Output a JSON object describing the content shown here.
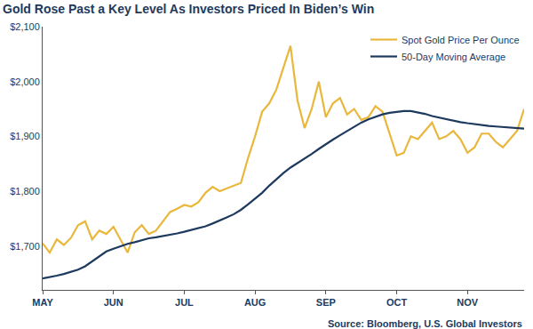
{
  "chart_data": {
    "type": "line",
    "title": "Gold Rose Past a Key Level As Investors Priced In Biden’s Win",
    "annotations": [
      "Source: Bloomberg, U.S. Global Investors"
    ],
    "categories": [
      "MAY",
      null,
      null,
      null,
      null,
      null,
      null,
      null,
      null,
      null,
      "JUN",
      null,
      null,
      null,
      null,
      null,
      null,
      null,
      null,
      null,
      "JUL",
      null,
      null,
      null,
      null,
      null,
      null,
      null,
      null,
      null,
      "AUG",
      null,
      null,
      null,
      null,
      null,
      null,
      null,
      null,
      null,
      "SEP",
      null,
      null,
      null,
      null,
      null,
      null,
      null,
      null,
      null,
      "OCT",
      null,
      null,
      null,
      null,
      null,
      null,
      null,
      null,
      null,
      "NOV",
      null,
      null,
      null,
      null,
      null,
      null,
      null,
      null
    ],
    "series": [
      {
        "name": "Spot Gold Price Per Ounce",
        "color": "#e9b73b",
        "line_style": "solid",
        "values": [
          1705,
          1688,
          1712,
          1702,
          1715,
          1738,
          1745,
          1712,
          1728,
          1722,
          1735,
          1712,
          1688,
          1725,
          1738,
          1722,
          1728,
          1745,
          1762,
          1768,
          1775,
          1772,
          1780,
          1797,
          1808,
          1800,
          1805,
          1810,
          1815,
          1860,
          1900,
          1945,
          1960,
          1985,
          2025,
          2065,
          1965,
          1915,
          1950,
          2000,
          1935,
          1960,
          1970,
          1940,
          1950,
          1930,
          1935,
          1955,
          1945,
          1905,
          1865,
          1870,
          1900,
          1895,
          1910,
          1925,
          1895,
          1900,
          1910,
          1895,
          1870,
          1880,
          1905,
          1905,
          1890,
          1880,
          1895,
          1910,
          1950
        ]
      },
      {
        "name": "50-Day Moving Average",
        "color": "#1d3a5e",
        "line_style": "solid",
        "values": [
          1641,
          1643,
          1646,
          1649,
          1653,
          1657,
          1663,
          1672,
          1681,
          1690,
          1695,
          1700,
          1704,
          1707,
          1711,
          1714,
          1716,
          1718,
          1720,
          1723,
          1726,
          1729,
          1732,
          1736,
          1741,
          1746,
          1752,
          1758,
          1766,
          1776,
          1786,
          1797,
          1810,
          1822,
          1833,
          1843,
          1851,
          1860,
          1868,
          1877,
          1886,
          1894,
          1902,
          1910,
          1918,
          1925,
          1931,
          1936,
          1940,
          1943,
          1945,
          1946,
          1946,
          1944,
          1941,
          1937,
          1934,
          1931,
          1929,
          1926,
          1924,
          1922,
          1921,
          1919,
          1918,
          1917,
          1916,
          1915,
          1914
        ]
      }
    ],
    "ylim": [
      1620,
      2100
    ],
    "yticks": [
      {
        "value": 1700,
        "label": "$1,700"
      },
      {
        "value": 1800,
        "label": "$1,800"
      },
      {
        "value": 1900,
        "label": "$1,900"
      },
      {
        "value": 2000,
        "label": "$2,000"
      },
      {
        "value": 2100,
        "label": "$2,100"
      }
    ],
    "grid": false,
    "legend": "upper right"
  }
}
